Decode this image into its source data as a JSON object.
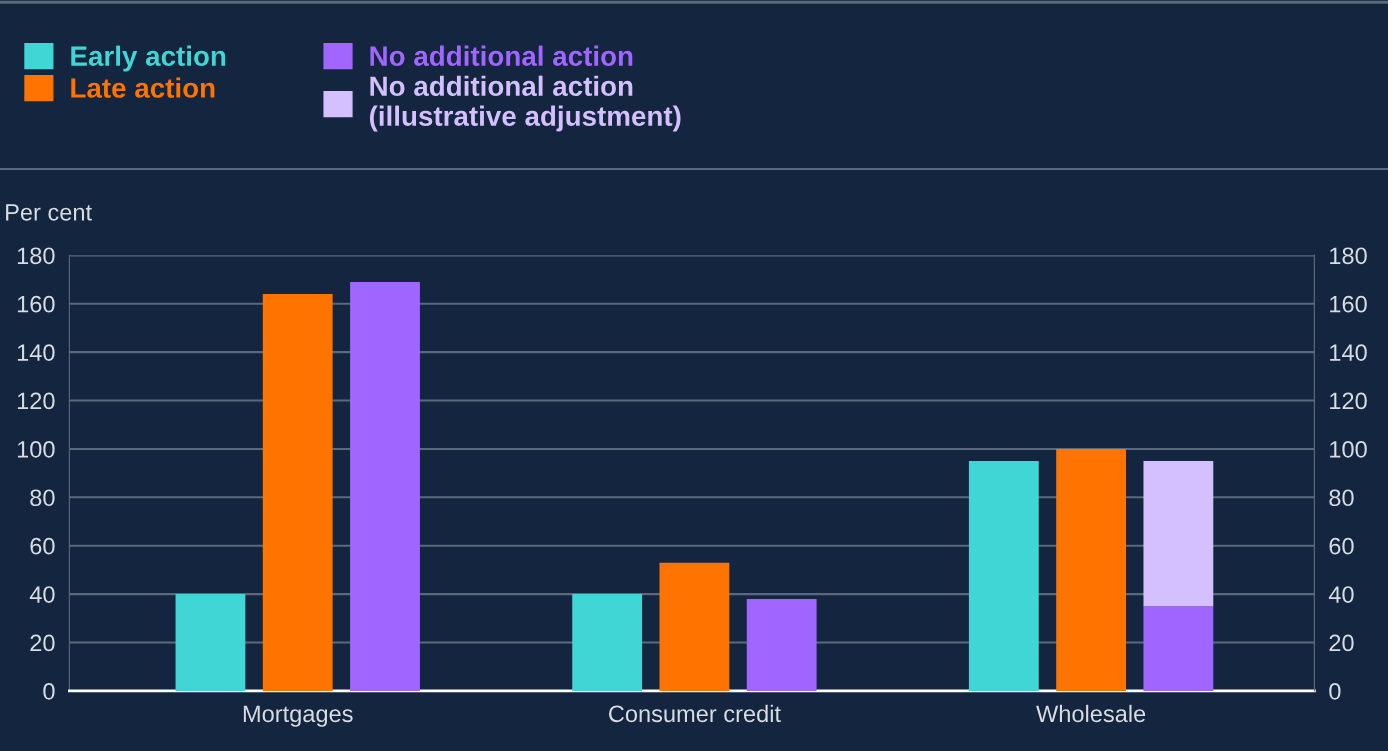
{
  "chart_data": {
    "type": "bar",
    "ylabel": "Per cent",
    "categories": [
      "Mortgages",
      "Consumer credit",
      "Wholesale"
    ],
    "series": [
      {
        "name": "Early action",
        "color": "#40d6d6",
        "values": [
          40,
          40,
          95
        ]
      },
      {
        "name": "Late action",
        "color": "#ff7300",
        "values": [
          164,
          53,
          100
        ]
      },
      {
        "name": "No additional action",
        "color": "#a166ff",
        "values": [
          169,
          38,
          35
        ]
      },
      {
        "name": "No additional action\n(illustrative adjustment)",
        "color": "#d4bfff",
        "values": [
          null,
          null,
          60
        ],
        "base": [
          null,
          null,
          35
        ]
      }
    ],
    "ylim": [
      0,
      180
    ],
    "yticks": [
      0,
      20,
      40,
      60,
      80,
      100,
      120,
      140,
      160,
      180
    ],
    "y2lim": [
      0,
      180
    ],
    "y2ticks": [
      0,
      20,
      40,
      60,
      80,
      100,
      120,
      140,
      160,
      180
    ],
    "grid": "y",
    "legend": "top"
  }
}
